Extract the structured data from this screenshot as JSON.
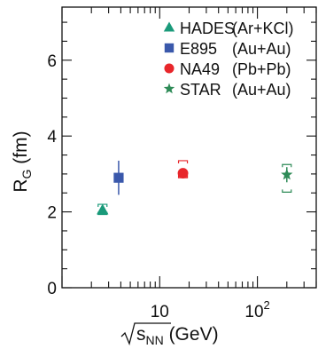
{
  "chart_data": {
    "type": "scatter",
    "title": "",
    "ylabel": "R",
    "ylabel_sub": "G",
    "ylabel_unit": " (fm)",
    "xlabel_sqrt": "s",
    "xlabel_sub": "NN",
    "xlabel_unit": " (GeV)",
    "x_scale": "log",
    "xlim": [
      1,
      400
    ],
    "ylim": [
      0,
      7.4
    ],
    "y_ticks": [
      0,
      2,
      4,
      6
    ],
    "y_tick_labels": [
      "0",
      "2",
      "4",
      "6"
    ],
    "x_ticks": [
      10,
      100
    ],
    "x_tick_labels": [
      {
        "base": "10",
        "exp": ""
      },
      {
        "base": "10",
        "exp": "2"
      }
    ],
    "grid": false,
    "legend_position": "top-right",
    "series": [
      {
        "name": "HADES",
        "system": "(Ar+KCl)",
        "color": "#1a9a7a",
        "marker": "triangle",
        "points": [
          {
            "x": 2.6,
            "y": 2.05,
            "err": 0.12,
            "syst_low": 1.93,
            "syst_high": 2.2
          }
        ]
      },
      {
        "name": "E895",
        "system": "(Au+Au)",
        "color": "#3a58ab",
        "marker": "square",
        "points": [
          {
            "x": 3.8,
            "y": 2.9,
            "err": 0.45
          }
        ]
      },
      {
        "name": "NA49",
        "system": "(Pb+Pb)",
        "color": "#e8262b",
        "marker": "circle",
        "points": [
          {
            "x": 17.3,
            "y": 3.02,
            "err": 0.1,
            "syst_low": 2.9,
            "syst_high": 3.35
          }
        ]
      },
      {
        "name": "STAR",
        "system": "(Au+Au)",
        "color": "#2e8b57",
        "marker": "star",
        "points": [
          {
            "x": 200,
            "y": 2.98,
            "err": 0.2,
            "syst_low": 2.52,
            "syst_high": 3.25
          }
        ]
      }
    ]
  }
}
